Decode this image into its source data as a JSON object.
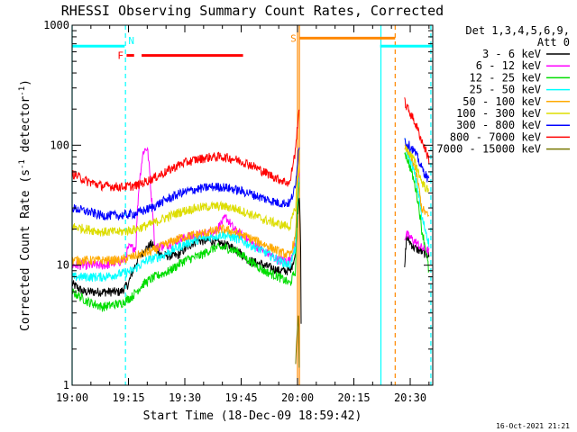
{
  "chart_data": {
    "type": "line",
    "title": "RHESSI Observing Summary Count Rates, Corrected",
    "xlabel": "Start Time (18-Dec-09 18:59:42)",
    "ylabel_main": "Corrected Count Rate (s",
    "ylabel_sup": "-1",
    "ylabel_mid": " detector",
    "ylabel_end": ")",
    "y_scale": "log",
    "ylim": [
      1,
      1000
    ],
    "xlim_minutes": [
      0,
      96
    ],
    "x_ticks": [
      {
        "minute": 0,
        "label": "19:00"
      },
      {
        "minute": 15,
        "label": "19:15"
      },
      {
        "minute": 30,
        "label": "19:30"
      },
      {
        "minute": 45,
        "label": "19:45"
      },
      {
        "minute": 60,
        "label": "20:00"
      },
      {
        "minute": 75,
        "label": "20:15"
      },
      {
        "minute": 90,
        "label": "20:30"
      }
    ],
    "y_ticks": [
      {
        "value": 1,
        "label": "1"
      },
      {
        "value": 10,
        "label": "10"
      },
      {
        "value": 100,
        "label": "100"
      },
      {
        "value": 1000,
        "label": "1000"
      }
    ],
    "legend_header_1": "Det 1,3,4,5,6,9,",
    "legend_header_2": "Att 0",
    "legend_placement": "right",
    "timestamp": "16-Oct-2021 21:21",
    "series": [
      {
        "name": "3 - 6 keV",
        "color": "#000000",
        "points": [
          [
            0,
            7
          ],
          [
            3,
            6
          ],
          [
            8,
            6
          ],
          [
            13,
            6
          ],
          [
            15,
            7
          ],
          [
            18,
            12
          ],
          [
            21,
            15
          ],
          [
            24,
            12
          ],
          [
            28,
            12
          ],
          [
            33,
            16
          ],
          [
            37,
            16
          ],
          [
            40,
            15
          ],
          [
            43,
            14
          ],
          [
            47,
            11
          ],
          [
            51,
            10
          ],
          [
            55,
            9
          ],
          [
            58,
            9
          ],
          [
            59.5,
            12
          ],
          [
            60.5,
            40
          ],
          [
            61,
            0
          ]
        ],
        "post": [
          [
            88.5,
            9
          ],
          [
            89,
            17
          ],
          [
            91,
            14
          ],
          [
            93,
            13
          ],
          [
            95,
            12
          ]
        ]
      },
      {
        "name": "6 - 12 keV",
        "color": "#ff00ff",
        "points": [
          [
            0,
            10
          ],
          [
            4,
            10
          ],
          [
            9,
            10
          ],
          [
            14,
            11
          ],
          [
            15,
            14
          ],
          [
            17,
            14
          ],
          [
            19,
            90
          ],
          [
            20,
            95
          ],
          [
            21,
            40
          ],
          [
            22,
            14
          ],
          [
            26,
            15
          ],
          [
            30,
            17
          ],
          [
            34,
            18
          ],
          [
            38,
            19
          ],
          [
            41,
            25
          ],
          [
            43,
            20
          ],
          [
            47,
            16
          ],
          [
            51,
            13
          ],
          [
            55,
            11
          ],
          [
            58,
            11
          ],
          [
            59.5,
            15
          ],
          [
            60.5,
            60
          ]
        ],
        "post": [
          [
            88.5,
            17
          ],
          [
            89,
            18
          ],
          [
            91,
            16
          ],
          [
            93,
            14
          ],
          [
            95,
            13
          ]
        ]
      },
      {
        "name": "12 - 25 keV",
        "color": "#00dd00",
        "points": [
          [
            0,
            6
          ],
          [
            4,
            5
          ],
          [
            8,
            4.5
          ],
          [
            13,
            4.8
          ],
          [
            16,
            5.5
          ],
          [
            19,
            7
          ],
          [
            22,
            8
          ],
          [
            26,
            9
          ],
          [
            30,
            11
          ],
          [
            34,
            12
          ],
          [
            38,
            14
          ],
          [
            41,
            14
          ],
          [
            44,
            13
          ],
          [
            47,
            11
          ],
          [
            51,
            9
          ],
          [
            55,
            8
          ],
          [
            58,
            7
          ],
          [
            59.5,
            9
          ],
          [
            60.5,
            50
          ]
        ],
        "post": [
          [
            88.5,
            90
          ],
          [
            89,
            80
          ],
          [
            91,
            50
          ],
          [
            93,
            20
          ],
          [
            95,
            8.5
          ]
        ]
      },
      {
        "name": "25 - 50 keV",
        "color": "#00ffff",
        "points": [
          [
            0,
            8
          ],
          [
            4,
            8
          ],
          [
            8,
            8
          ],
          [
            13,
            8.5
          ],
          [
            16,
            9
          ],
          [
            20,
            11
          ],
          [
            24,
            12
          ],
          [
            28,
            14
          ],
          [
            32,
            16
          ],
          [
            36,
            17
          ],
          [
            40,
            18
          ],
          [
            43,
            17
          ],
          [
            47,
            15
          ],
          [
            51,
            13
          ],
          [
            55,
            11
          ],
          [
            58,
            10
          ],
          [
            59.5,
            14
          ],
          [
            60.5,
            60
          ]
        ],
        "post": [
          [
            88.5,
            110
          ],
          [
            89,
            90
          ],
          [
            91,
            60
          ],
          [
            93,
            25
          ],
          [
            95,
            15
          ]
        ]
      },
      {
        "name": "50 - 100 keV",
        "color": "#ffaa00",
        "points": [
          [
            0,
            11
          ],
          [
            4,
            11
          ],
          [
            8,
            11
          ],
          [
            13,
            11
          ],
          [
            17,
            12
          ],
          [
            21,
            13
          ],
          [
            25,
            15
          ],
          [
            29,
            17
          ],
          [
            33,
            18
          ],
          [
            37,
            19
          ],
          [
            40,
            20
          ],
          [
            43,
            19
          ],
          [
            47,
            17
          ],
          [
            51,
            15
          ],
          [
            55,
            13
          ],
          [
            58,
            12
          ],
          [
            59.5,
            17
          ],
          [
            60.5,
            70
          ]
        ],
        "post": [
          [
            88.5,
            100
          ],
          [
            89,
            90
          ],
          [
            91,
            70
          ],
          [
            93,
            30
          ],
          [
            95,
            25
          ]
        ]
      },
      {
        "name": "100 - 300 keV",
        "color": "#dddd00",
        "points": [
          [
            0,
            21
          ],
          [
            4,
            20
          ],
          [
            8,
            19
          ],
          [
            13,
            19
          ],
          [
            17,
            20
          ],
          [
            21,
            22
          ],
          [
            25,
            25
          ],
          [
            29,
            28
          ],
          [
            33,
            30
          ],
          [
            37,
            31
          ],
          [
            40,
            31
          ],
          [
            43,
            30
          ],
          [
            47,
            27
          ],
          [
            51,
            24
          ],
          [
            55,
            22
          ],
          [
            58,
            21
          ],
          [
            59.5,
            30
          ],
          [
            60.5,
            90
          ]
        ],
        "post": [
          [
            88.5,
            100
          ],
          [
            89,
            95
          ],
          [
            91,
            75
          ],
          [
            93,
            50
          ],
          [
            95,
            40
          ]
        ]
      },
      {
        "name": "300 - 800 keV",
        "color": "#0000ff",
        "points": [
          [
            0,
            30
          ],
          [
            4,
            28
          ],
          [
            8,
            26
          ],
          [
            13,
            26
          ],
          [
            17,
            27
          ],
          [
            21,
            30
          ],
          [
            25,
            35
          ],
          [
            29,
            40
          ],
          [
            33,
            43
          ],
          [
            37,
            45
          ],
          [
            40,
            45
          ],
          [
            43,
            43
          ],
          [
            47,
            40
          ],
          [
            51,
            36
          ],
          [
            55,
            33
          ],
          [
            58,
            33
          ],
          [
            59.5,
            45
          ],
          [
            60.5,
            105
          ]
        ],
        "post": [
          [
            88.5,
            110
          ],
          [
            89,
            105
          ],
          [
            91,
            90
          ],
          [
            93,
            65
          ],
          [
            95,
            50
          ]
        ]
      },
      {
        "name": "800 - 7000 keV",
        "color": "#ff0000",
        "points": [
          [
            0,
            58
          ],
          [
            4,
            50
          ],
          [
            8,
            46
          ],
          [
            13,
            45
          ],
          [
            17,
            46
          ],
          [
            21,
            52
          ],
          [
            25,
            60
          ],
          [
            29,
            70
          ],
          [
            33,
            76
          ],
          [
            37,
            80
          ],
          [
            40,
            80
          ],
          [
            43,
            77
          ],
          [
            47,
            70
          ],
          [
            51,
            60
          ],
          [
            55,
            52
          ],
          [
            58,
            48
          ],
          [
            59.5,
            90
          ],
          [
            60.5,
            210
          ]
        ],
        "post": [
          [
            88.5,
            230
          ],
          [
            89,
            210
          ],
          [
            91,
            160
          ],
          [
            93,
            110
          ],
          [
            95,
            75
          ]
        ]
      },
      {
        "name": "7000 - 15000 keV",
        "color": "#777700",
        "points": [
          [
            59.5,
            1.5
          ],
          [
            60,
            3
          ],
          [
            60.2,
            4
          ],
          [
            60.5,
            1
          ]
        ],
        "post": []
      }
    ],
    "top_bars": [
      {
        "label": "",
        "color": "#00ffff",
        "y_value": 670,
        "x_start": 0,
        "x_end": 14
      },
      {
        "label": "N",
        "color": "#00ffff",
        "y_value": 670,
        "x_start": 14,
        "x_end": 14,
        "label_only": true
      },
      {
        "label": "F",
        "color": "#ff0000",
        "y_value": 560,
        "x_start": 14.5,
        "x_end": 16.5
      },
      {
        "label": "",
        "color": "#ff0000",
        "y_value": 560,
        "x_start": 18.5,
        "x_end": 45.5
      },
      {
        "label": "S",
        "color": "#ff8800",
        "y_value": 780,
        "x_start": 60.5,
        "x_end": 86
      },
      {
        "label": "",
        "color": "#00ffff",
        "y_value": 670,
        "x_start": 82,
        "x_end": 96
      }
    ],
    "vertical_lines": [
      {
        "minute": 0,
        "color": "#00ffff",
        "style": "solid"
      },
      {
        "minute": 14.2,
        "color": "#00ffff",
        "style": "dashed"
      },
      {
        "minute": 60,
        "color": "#ff8800",
        "style": "solid"
      },
      {
        "minute": 60.5,
        "color": "#ff8800",
        "style": "solid"
      },
      {
        "minute": 82.2,
        "color": "#00ffff",
        "style": "solid"
      },
      {
        "minute": 86,
        "color": "#ff8800",
        "style": "dashed"
      },
      {
        "minute": 95.5,
        "color": "#00ffff",
        "style": "dashed"
      }
    ]
  }
}
